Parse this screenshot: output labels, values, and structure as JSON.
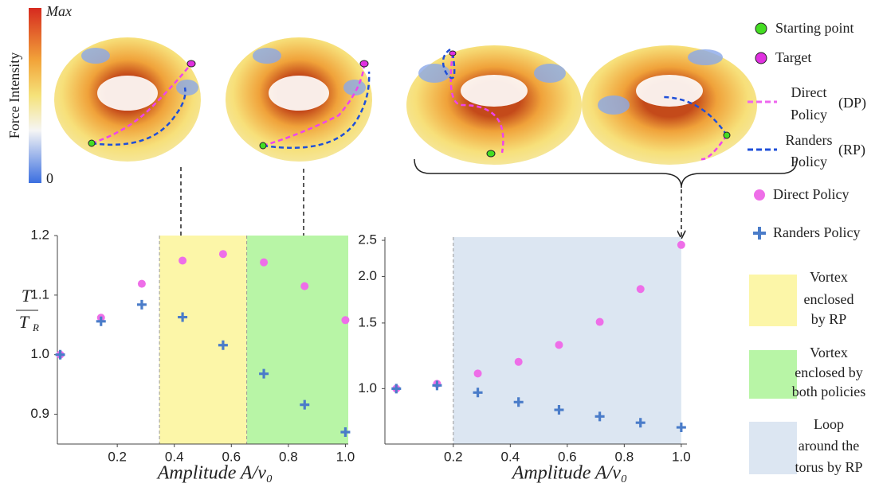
{
  "illustration": {
    "colorbar_max": "Max",
    "colorbar_min": "0",
    "colorbar_label": "Force Intensity",
    "start_label": "Starting point",
    "target_label": "Target",
    "dp_lines": [
      "Direct",
      "Policy"
    ],
    "dp_abbr": "(DP)",
    "rp_lines": [
      "Randers",
      "Policy"
    ],
    "rp_abbr": "(RP)"
  },
  "chart_data": [
    {
      "type": "scatter",
      "x_label": "Amplitude  A/v₀",
      "y_label": {
        "numerator": "T",
        "denominator": "T",
        "denominator_subscript": "R"
      },
      "x": [
        0,
        0.143,
        0.286,
        0.429,
        0.571,
        0.714,
        0.857,
        1.0
      ],
      "series": [
        {
          "name": "Direct Policy",
          "color": "#ee6ee8",
          "marker": "circle",
          "values": [
            1.0,
            1.062,
            1.119,
            1.158,
            1.169,
            1.155,
            1.115,
            1.058
          ]
        },
        {
          "name": "Randers Policy",
          "color": "#4a7cc9",
          "marker": "plus",
          "values": [
            1.0,
            1.056,
            1.084,
            1.063,
            1.016,
            0.968,
            0.916,
            0.87
          ]
        }
      ],
      "regions": [
        {
          "x0": 0.348,
          "x1": 0.654,
          "color": "#fcf6a8",
          "label": [
            "Vortex",
            "enclosed",
            "by RP"
          ]
        },
        {
          "x0": 0.654,
          "x1": 1.01,
          "color": "#b8f5a6",
          "label": [
            "Vortex",
            "enclosed by",
            "both policies"
          ]
        }
      ],
      "xlim": [
        -0.01,
        1.01
      ],
      "ylim": [
        0.85,
        1.2
      ],
      "xticks": [
        0.2,
        0.4,
        0.6,
        0.8,
        {
          "value": 1.0,
          "label": "1.0"
        }
      ],
      "yticks": [
        0.9,
        {
          "value": 1.0,
          "label": "1.0"
        },
        1.1,
        1.2
      ]
    },
    {
      "type": "scatter",
      "x_label": "Amplitude  A/v₀",
      "log_y": true,
      "x": [
        0,
        0.143,
        0.286,
        0.429,
        0.571,
        0.714,
        0.857,
        1.0
      ],
      "series": [
        {
          "color": "#ee6ee8",
          "marker": "circle",
          "values": [
            1.0,
            1.03,
            1.098,
            1.18,
            1.31,
            1.51,
            1.85,
            2.43
          ]
        },
        {
          "color": "#4a7cc9",
          "marker": "plus",
          "values": [
            1.0,
            1.02,
            0.976,
            0.92,
            0.877,
            0.842,
            0.81,
            0.787
          ]
        }
      ],
      "regions": [
        {
          "x0": 0.2,
          "x1": 1.0,
          "color": "#dce6f2",
          "label": [
            "Loop",
            "around the",
            "torus by RP"
          ]
        }
      ],
      "xlim": [
        -0.04,
        1.02
      ],
      "ylim": [
        0.71,
        2.55
      ],
      "xticks": [
        0.2,
        0.4,
        0.6,
        0.8,
        {
          "value": 1.0,
          "label": "1.0"
        }
      ],
      "yticks": [
        {
          "value": 1.0,
          "label": "1.0"
        },
        1.5,
        {
          "value": 2.0,
          "label": "2.0"
        },
        2.5
      ]
    }
  ]
}
